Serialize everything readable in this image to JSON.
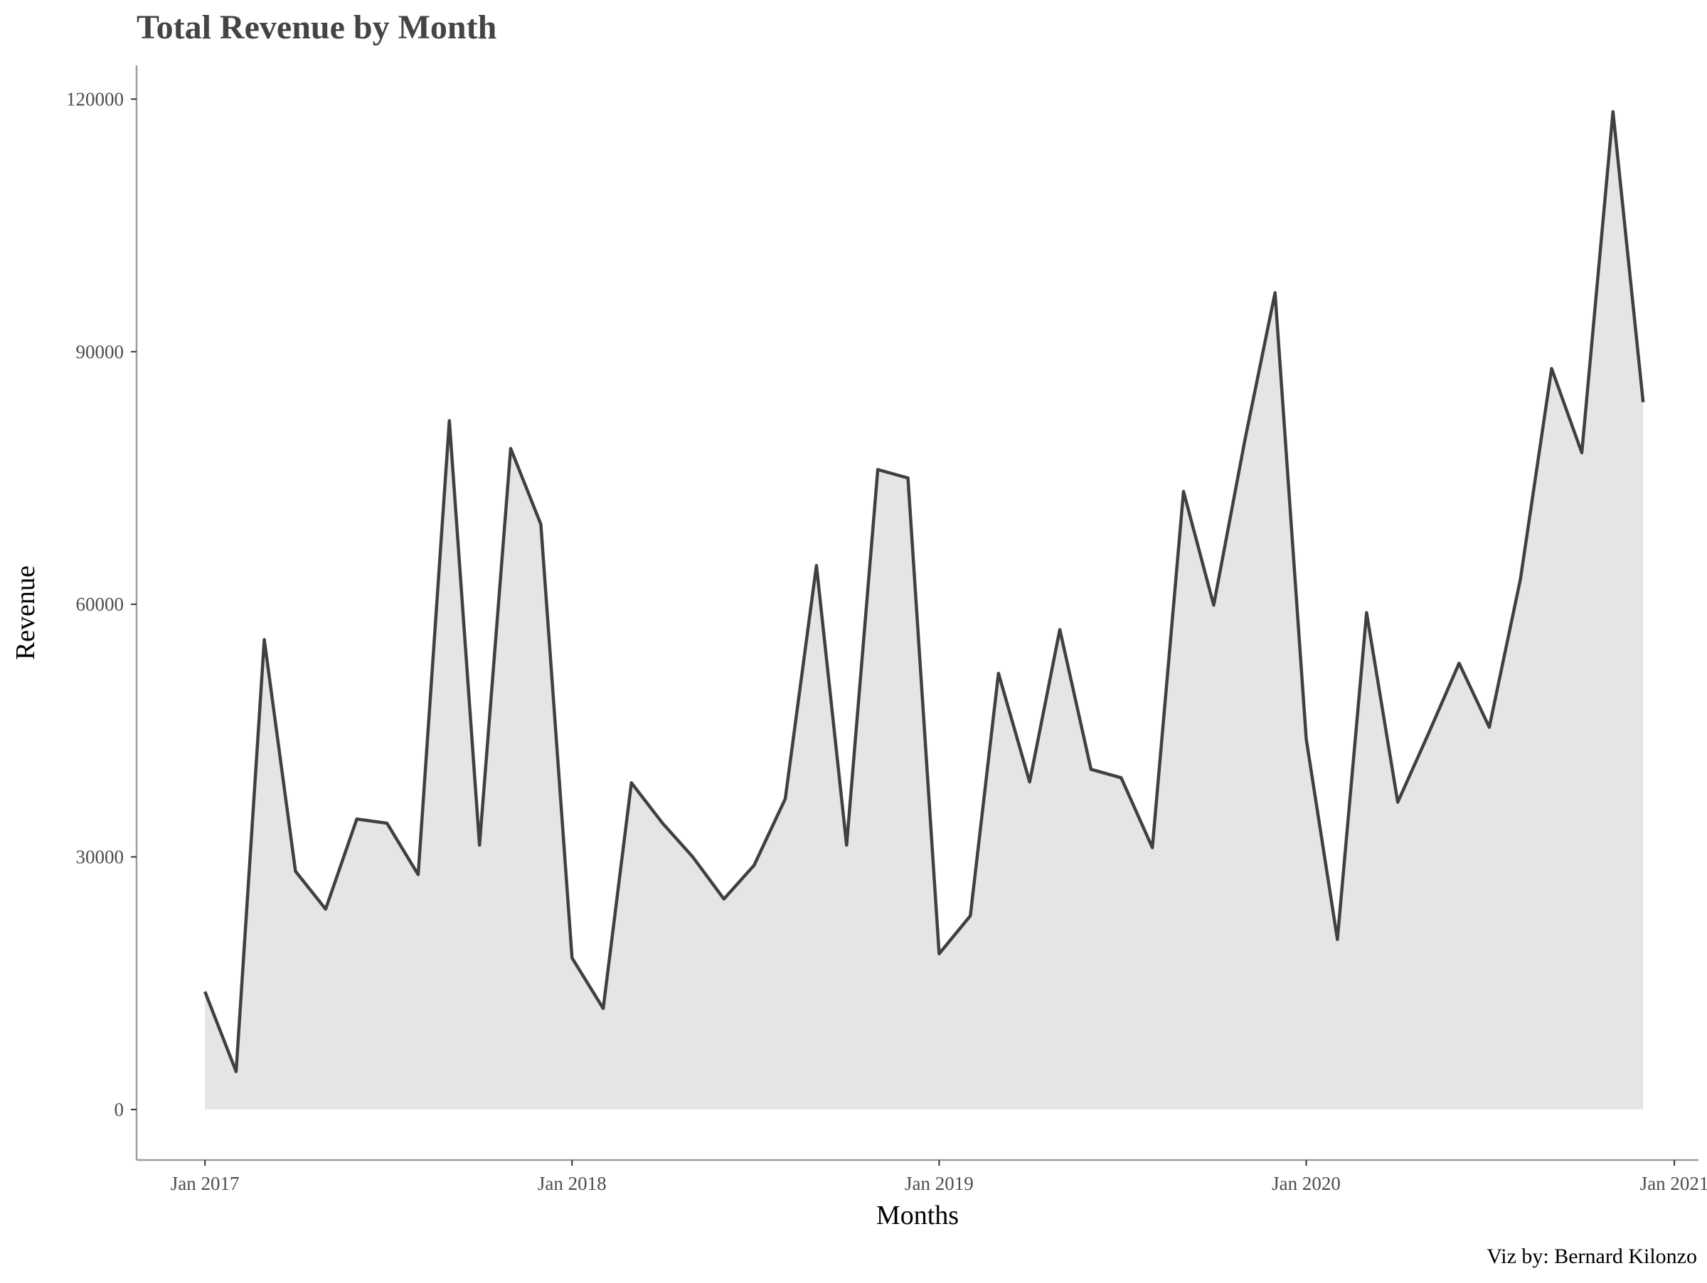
{
  "chart_data": {
    "type": "area",
    "title": "Total Revenue by Month",
    "xlabel": "Months",
    "ylabel": "Revenue",
    "caption": "Viz by: Bernard Kilonzo",
    "x_ticks": [
      "Jan 2017",
      "Jan 2018",
      "Jan 2019",
      "Jan 2020",
      "Jan 2021"
    ],
    "y_ticks": [
      0,
      30000,
      60000,
      90000,
      120000
    ],
    "ylim": [
      -6000,
      124000
    ],
    "xlim": [
      "2016-10-25",
      "2021-01-25"
    ],
    "grid": false,
    "legend": "none",
    "colors": {
      "line": "#404040",
      "fill": "#e5e5e5",
      "axis": "#9e9e9e",
      "title": "#444444"
    },
    "x": [
      "2017-01-01",
      "2017-02-01",
      "2017-03-01",
      "2017-04-01",
      "2017-05-01",
      "2017-06-01",
      "2017-07-01",
      "2017-08-01",
      "2017-09-01",
      "2017-10-01",
      "2017-11-01",
      "2017-12-01",
      "2018-01-01",
      "2018-02-01",
      "2018-03-01",
      "2018-04-01",
      "2018-05-01",
      "2018-06-01",
      "2018-07-01",
      "2018-08-01",
      "2018-09-01",
      "2018-10-01",
      "2018-11-01",
      "2018-12-01",
      "2019-01-01",
      "2019-02-01",
      "2019-03-01",
      "2019-04-01",
      "2019-05-01",
      "2019-06-01",
      "2019-07-01",
      "2019-08-01",
      "2019-09-01",
      "2019-10-01",
      "2019-11-01",
      "2019-12-01",
      "2020-01-01",
      "2020-02-01",
      "2020-03-01",
      "2020-04-01",
      "2020-05-01",
      "2020-06-01",
      "2020-07-01",
      "2020-08-01",
      "2020-09-01",
      "2020-10-01",
      "2020-11-01",
      "2020-12-01"
    ],
    "series": [
      {
        "values": [
          14000,
          4500,
          55800,
          28300,
          23800,
          34500,
          34000,
          27900,
          81800,
          31400,
          78500,
          69500,
          18000,
          12000,
          38800,
          34000,
          30000,
          25000,
          29000,
          36900,
          64600,
          31400,
          76000,
          75000,
          18500,
          23000,
          51800,
          38900,
          57000,
          40400,
          39400,
          31100,
          73400,
          59900,
          79500,
          97000,
          44000,
          20200,
          59000,
          36500,
          44500,
          53000,
          45400,
          63000,
          88000,
          78000,
          118500,
          84000
        ]
      }
    ]
  }
}
